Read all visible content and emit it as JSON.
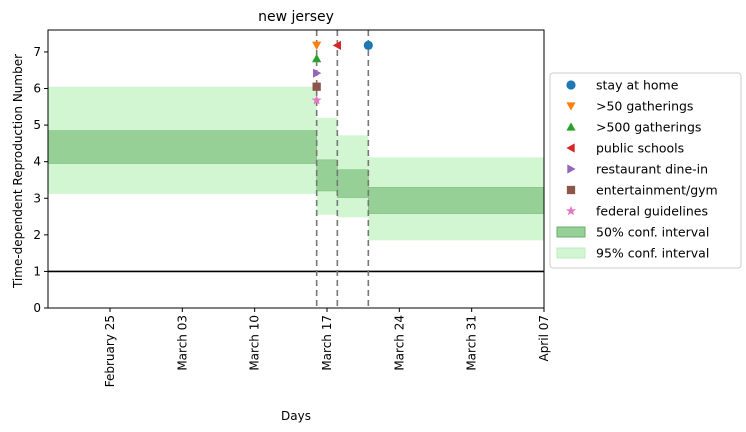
{
  "chart_data": {
    "type": "step-area",
    "title": "new jersey",
    "xlabel": "Days",
    "ylabel": "Time-dependent Reproduction Number",
    "xlim": [
      "2020-02-19",
      "2020-04-07"
    ],
    "ylim": [
      0,
      7.6
    ],
    "x_ticks": [
      {
        "date": "2020-02-25",
        "label": "February 25"
      },
      {
        "date": "2020-03-03",
        "label": "March 03"
      },
      {
        "date": "2020-03-10",
        "label": "March 10"
      },
      {
        "date": "2020-03-17",
        "label": "March 17"
      },
      {
        "date": "2020-03-24",
        "label": "March 24"
      },
      {
        "date": "2020-03-31",
        "label": "March 31"
      },
      {
        "date": "2020-04-07",
        "label": "April 07"
      }
    ],
    "y_ticks": [
      0,
      1,
      2,
      3,
      4,
      5,
      6,
      7
    ],
    "reference_line": {
      "y": 1,
      "color": "#000000"
    },
    "intervention_lines": [
      "2020-03-16",
      "2020-03-18",
      "2020-03-21"
    ],
    "conf_intervals": [
      {
        "start": "2020-02-19",
        "end": "2020-03-16",
        "lo50": 3.95,
        "hi50": 4.85,
        "lo95": 3.12,
        "hi95": 6.05
      },
      {
        "start": "2020-03-16",
        "end": "2020-03-18",
        "lo50": 3.2,
        "hi50": 4.05,
        "lo95": 2.55,
        "hi95": 5.2
      },
      {
        "start": "2020-03-18",
        "end": "2020-03-21",
        "lo50": 3.02,
        "hi50": 3.78,
        "lo95": 2.48,
        "hi95": 4.72
      },
      {
        "start": "2020-03-21",
        "end": "2020-04-07",
        "lo50": 2.58,
        "hi50": 3.3,
        "lo95": 1.85,
        "hi95": 4.12
      }
    ],
    "events": [
      {
        "name": "stay at home",
        "date": "2020-03-21",
        "y": 7.18,
        "marker": "circle",
        "color": "#1f77b4"
      },
      {
        "name": ">50 gatherings",
        "date": "2020-03-16",
        "y": 7.18,
        "marker": "triangle-down",
        "color": "#ff7f0e"
      },
      {
        "name": ">500 gatherings",
        "date": "2020-03-16",
        "y": 6.82,
        "marker": "triangle-up",
        "color": "#2ca02c"
      },
      {
        "name": "public schools",
        "date": "2020-03-18",
        "y": 7.18,
        "marker": "triangle-left",
        "color": "#d62728"
      },
      {
        "name": "restaurant dine-in",
        "date": "2020-03-16",
        "y": 6.42,
        "marker": "triangle-right",
        "color": "#9467bd"
      },
      {
        "name": "entertainment/gym",
        "date": "2020-03-16",
        "y": 6.05,
        "marker": "square",
        "color": "#8c564b"
      },
      {
        "name": "federal guidelines",
        "date": "2020-03-16",
        "y": 5.68,
        "marker": "star",
        "color": "#e377c2"
      }
    ],
    "legend": {
      "placement": "center-right-outside",
      "entries": [
        {
          "label": "stay at home",
          "marker": "circle",
          "color": "#1f77b4"
        },
        {
          "label": ">50 gatherings",
          "marker": "triangle-down",
          "color": "#ff7f0e"
        },
        {
          "label": ">500 gatherings",
          "marker": "triangle-up",
          "color": "#2ca02c"
        },
        {
          "label": "public schools",
          "marker": "triangle-left",
          "color": "#d62728"
        },
        {
          "label": "restaurant dine-in",
          "marker": "triangle-right",
          "color": "#9467bd"
        },
        {
          "label": "entertainment/gym",
          "marker": "square",
          "color": "#8c564b"
        },
        {
          "label": "federal guidelines",
          "marker": "star",
          "color": "#e377c2"
        },
        {
          "label": "50% conf. interval",
          "marker": "patch",
          "color": "#96d096",
          "edge": "#6aae6a"
        },
        {
          "label": "95% conf. interval",
          "marker": "patch",
          "color": "#d2f6d2",
          "edge": "#c0ecc0"
        }
      ]
    },
    "colors": {
      "band50": "#96d096",
      "band95": "#d2f6d2",
      "band50_edge": "#7cbf7c",
      "vline": "#777777"
    }
  }
}
